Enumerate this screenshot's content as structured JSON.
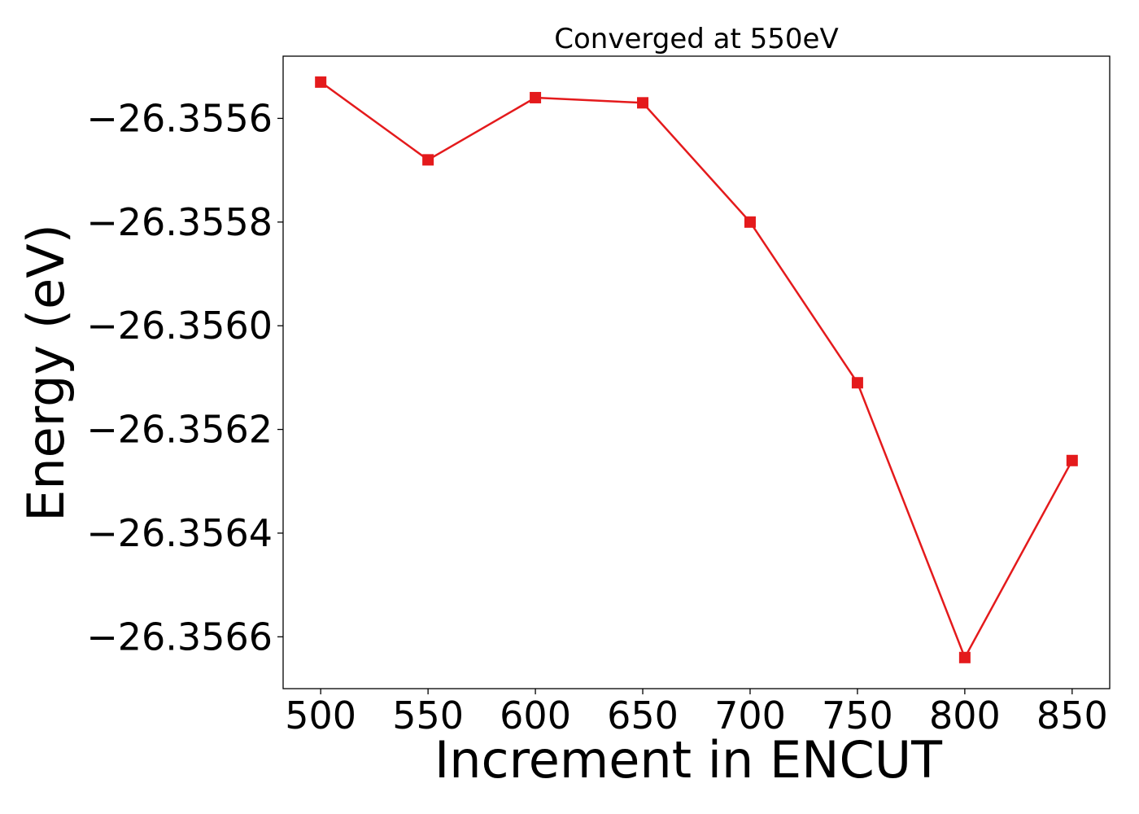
{
  "chart_data": {
    "type": "line",
    "title": "Converged at 550eV",
    "xlabel": "Increment in ENCUT",
    "ylabel": "Energy (eV)",
    "x": [
      500,
      550,
      600,
      650,
      700,
      750,
      800,
      850
    ],
    "xticks": [
      500,
      550,
      600,
      650,
      700,
      750,
      800,
      850
    ],
    "xtick_labels": [
      "500",
      "550",
      "600",
      "650",
      "700",
      "750",
      "800",
      "850"
    ],
    "xlim": [
      482.5,
      867.5
    ],
    "yticks": [
      -26.3556,
      -26.3558,
      -26.356,
      -26.3562,
      -26.3564,
      -26.3566
    ],
    "ytick_labels": [
      "−26.3556",
      "−26.3558",
      "−26.3560",
      "−26.3562",
      "−26.3564",
      "−26.3566"
    ],
    "ylim": [
      -26.3567,
      -26.35548
    ],
    "grid": false,
    "series": [
      {
        "color": "#e41a1c",
        "marker": "square",
        "values": [
          -26.35553,
          -26.35568,
          -26.35556,
          -26.35557,
          -26.3558,
          -26.35611,
          -26.35664,
          -26.35626
        ]
      }
    ]
  }
}
